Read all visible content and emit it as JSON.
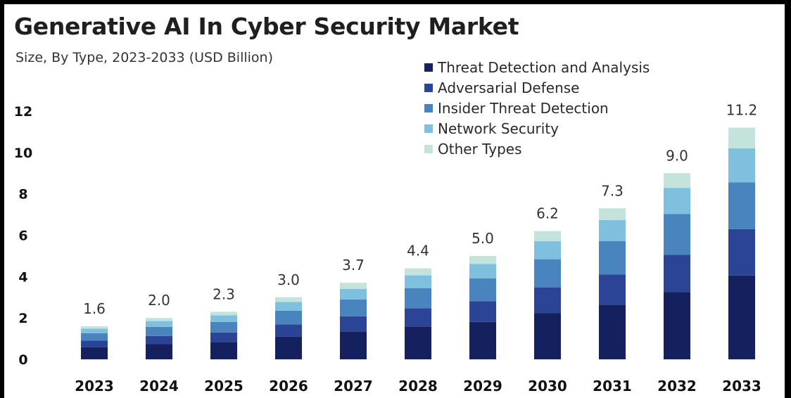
{
  "chart_data": {
    "type": "bar",
    "stacked": true,
    "title": "Generative AI In Cyber Security Market",
    "subtitle": "Size, By Type, 2023-2033 (USD Billion)",
    "categories": [
      "2023",
      "2024",
      "2025",
      "2026",
      "2027",
      "2028",
      "2029",
      "2030",
      "2031",
      "2032",
      "2033"
    ],
    "totals": [
      1.6,
      2.0,
      2.3,
      3.0,
      3.7,
      4.4,
      5.0,
      6.2,
      7.3,
      9.0,
      11.2
    ],
    "total_labels": [
      "1.6",
      "2.0",
      "2.3",
      "3.0",
      "3.7",
      "4.4",
      "5.0",
      "6.2",
      "7.3",
      "9.0",
      "11.2"
    ],
    "series": [
      {
        "name": "Threat Detection and Analysis",
        "color": "#15205f",
        "values": [
          0.58,
          0.73,
          0.84,
          1.09,
          1.34,
          1.59,
          1.81,
          2.24,
          2.64,
          3.25,
          4.05
        ]
      },
      {
        "name": "Adversarial Defense",
        "color": "#2c4495",
        "values": [
          0.32,
          0.4,
          0.46,
          0.6,
          0.74,
          0.88,
          1.0,
          1.24,
          1.46,
          1.8,
          2.24
        ]
      },
      {
        "name": "Insider Threat Detection",
        "color": "#4a84bf",
        "values": [
          0.36,
          0.44,
          0.51,
          0.66,
          0.81,
          0.97,
          1.1,
          1.36,
          1.61,
          1.98,
          2.26
        ]
      },
      {
        "name": "Network Security",
        "color": "#7ec0de",
        "values": [
          0.22,
          0.28,
          0.32,
          0.42,
          0.52,
          0.62,
          0.7,
          0.87,
          1.02,
          1.26,
          1.65
        ]
      },
      {
        "name": "Other Types",
        "color": "#c4e3dd",
        "values": [
          0.12,
          0.15,
          0.17,
          0.23,
          0.29,
          0.34,
          0.39,
          0.49,
          0.57,
          0.71,
          1.0
        ]
      }
    ],
    "yticks": [
      "0",
      "2",
      "4",
      "6",
      "8",
      "10",
      "12"
    ],
    "ylim": [
      0,
      12
    ],
    "grid": false,
    "legend_position": "top-right"
  }
}
